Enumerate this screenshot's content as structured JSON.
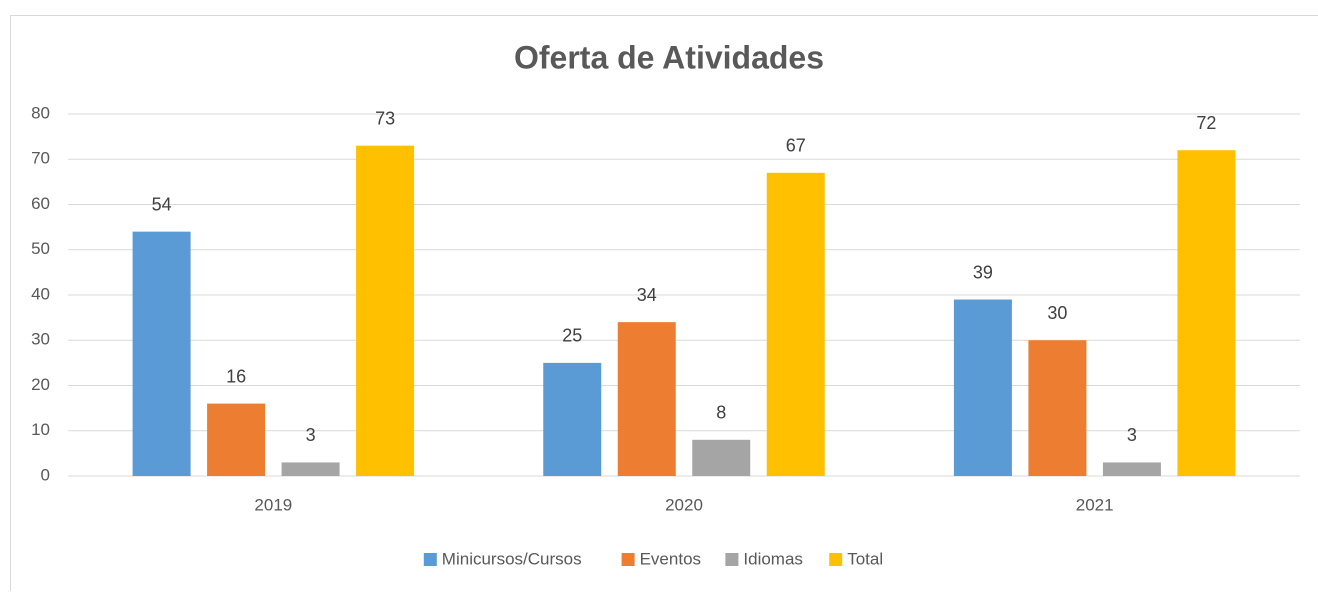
{
  "chart_data": {
    "type": "bar",
    "title": "Oferta de Atividades",
    "categories": [
      "2019",
      "2020",
      "2021"
    ],
    "series": [
      {
        "name": "Minicursos/Cursos",
        "color": "#5b9bd5",
        "values": [
          54,
          25,
          39
        ]
      },
      {
        "name": "Eventos",
        "color": "#ed7d31",
        "values": [
          16,
          34,
          30
        ]
      },
      {
        "name": "Idiomas",
        "color": "#a5a5a5",
        "values": [
          3,
          8,
          3
        ]
      },
      {
        "name": "Total",
        "color": "#ffc000",
        "values": [
          73,
          67,
          72
        ]
      }
    ],
    "ylim": [
      0,
      80
    ],
    "yticks": [
      0,
      10,
      20,
      30,
      40,
      50,
      60,
      70,
      80
    ],
    "grid": true,
    "legend": "bottom"
  }
}
